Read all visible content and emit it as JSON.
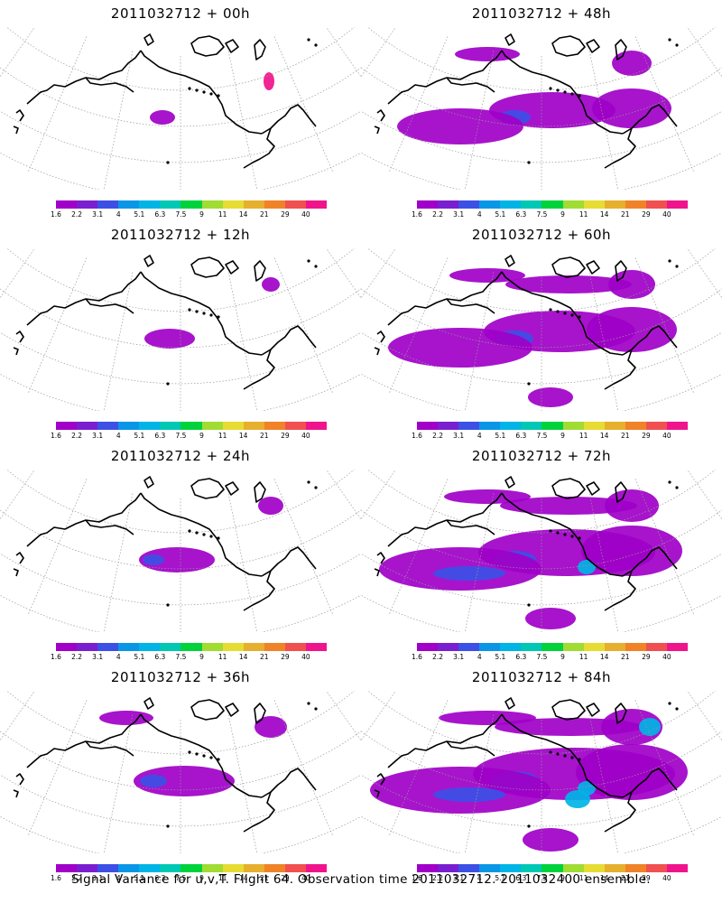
{
  "panels": [
    {
      "title": "2011032712 + 00h",
      "spread": 0
    },
    {
      "title": "2011032712 + 48h",
      "spread": 4
    },
    {
      "title": "2011032712 + 12h",
      "spread": 1
    },
    {
      "title": "2011032712 + 60h",
      "spread": 5
    },
    {
      "title": "2011032712 + 24h",
      "spread": 2
    },
    {
      "title": "2011032712 + 72h",
      "spread": 6
    },
    {
      "title": "2011032712 + 36h",
      "spread": 3
    },
    {
      "title": "2011032712 + 84h",
      "spread": 7
    }
  ],
  "colorbar": {
    "labels": [
      "1.6",
      "2.2",
      "3.1",
      "4",
      "5.1",
      "6.3",
      "7.5",
      "9",
      "11",
      "14",
      "21",
      "29",
      "40"
    ],
    "colors": [
      "#a000c8",
      "#7a1fd0",
      "#3c50e6",
      "#0a96e6",
      "#00b4e6",
      "#00c8b4",
      "#00d23c",
      "#a0dc32",
      "#e6dc32",
      "#e6af2d",
      "#f08228",
      "#f05050",
      "#f0148c"
    ]
  },
  "caption": "Signal Variance for u,v,T. Flight 64. Observation time 2011032712. 2011032400 ensemble."
}
